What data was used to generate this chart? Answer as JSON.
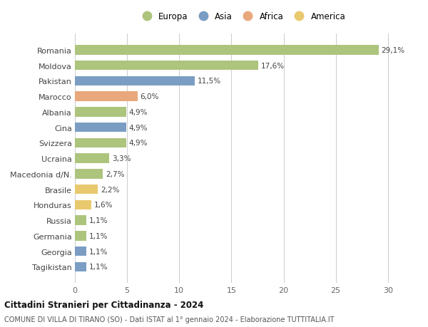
{
  "countries": [
    "Romania",
    "Moldova",
    "Pakistan",
    "Marocco",
    "Albania",
    "Cina",
    "Svizzera",
    "Ucraina",
    "Macedonia d/N.",
    "Brasile",
    "Honduras",
    "Russia",
    "Germania",
    "Georgia",
    "Tagikistan"
  ],
  "values": [
    29.1,
    17.6,
    11.5,
    6.0,
    4.9,
    4.9,
    4.9,
    3.3,
    2.7,
    2.2,
    1.6,
    1.1,
    1.1,
    1.1,
    1.1
  ],
  "labels": [
    "29,1%",
    "17,6%",
    "11,5%",
    "6,0%",
    "4,9%",
    "4,9%",
    "4,9%",
    "3,3%",
    "2,7%",
    "2,2%",
    "1,6%",
    "1,1%",
    "1,1%",
    "1,1%",
    "1,1%"
  ],
  "continents": [
    "Europa",
    "Europa",
    "Asia",
    "Africa",
    "Europa",
    "Asia",
    "Europa",
    "Europa",
    "Europa",
    "America",
    "America",
    "Europa",
    "Europa",
    "Asia",
    "Asia"
  ],
  "colors": {
    "Europa": "#adc47d",
    "Asia": "#7b9dc4",
    "Africa": "#e8a87c",
    "America": "#e8c96e"
  },
  "legend_order": [
    "Europa",
    "Asia",
    "Africa",
    "America"
  ],
  "title": "Cittadini Stranieri per Cittadinanza - 2024",
  "subtitle": "COMUNE DI VILLA DI TIRANO (SO) - Dati ISTAT al 1° gennaio 2024 - Elaborazione TUTTITALIA.IT",
  "xlim": [
    0,
    32
  ],
  "xticks": [
    0,
    5,
    10,
    15,
    20,
    25,
    30
  ],
  "background_color": "#ffffff",
  "grid_color": "#cccccc"
}
